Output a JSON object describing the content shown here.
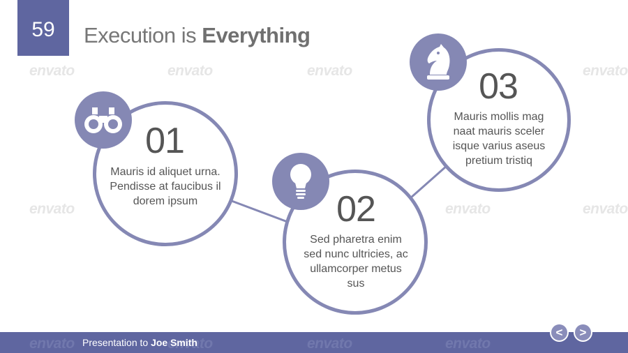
{
  "slide": {
    "number": "59",
    "title_light": "Execution is ",
    "title_bold": "Everything"
  },
  "watermark_text": "envato",
  "steps": [
    {
      "number": "01",
      "icon": "binoculars-icon",
      "text": "Mauris id aliquet urna. Pendisse at faucibus il dorem ipsum"
    },
    {
      "number": "02",
      "icon": "lightbulb-icon",
      "text": "Sed pharetra enim sed nunc ultricies, ac ullamcorper metus sus"
    },
    {
      "number": "03",
      "icon": "chess-knight-icon",
      "text": "Mauris mollis mag naat mauris sceler isque varius aseus pretium tristiq"
    }
  ],
  "footer": {
    "prefix": "Presentation to ",
    "name": "Joe Smith"
  },
  "nav": {
    "prev": "<",
    "next": ">"
  },
  "colors": {
    "accent": "#5f66a0",
    "ring": "#8588b4",
    "text": "#555555"
  }
}
